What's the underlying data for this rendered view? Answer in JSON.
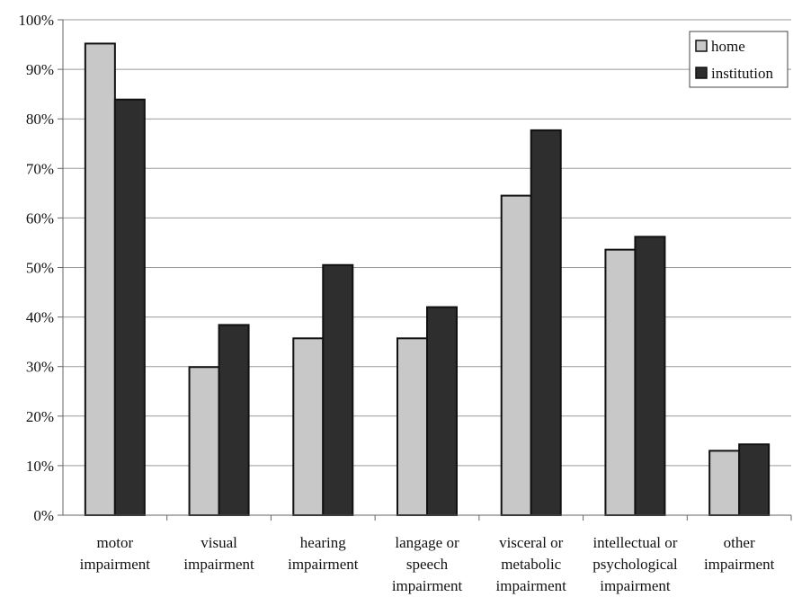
{
  "chart_data": {
    "type": "bar",
    "categories": [
      [
        "motor",
        "impairment"
      ],
      [
        "visual",
        "impairment"
      ],
      [
        "hearing",
        "impairment"
      ],
      [
        "langage or",
        "speech",
        "impairment"
      ],
      [
        "visceral or",
        "metabolic",
        "impairment"
      ],
      [
        "intellectual or",
        "psychological",
        "impairment"
      ],
      [
        "other",
        "impairment"
      ]
    ],
    "series": [
      {
        "name": "home",
        "color": "#c8c8c8",
        "values": [
          95.2,
          29.9,
          35.7,
          35.7,
          64.5,
          53.6,
          13.0
        ]
      },
      {
        "name": "institution",
        "color": "#2e2e2e",
        "values": [
          83.9,
          38.4,
          50.5,
          42.0,
          77.7,
          56.2,
          14.3
        ]
      }
    ],
    "ylim": [
      0,
      100
    ],
    "yticks": [
      "0%",
      "10%",
      "20%",
      "30%",
      "40%",
      "50%",
      "60%",
      "70%",
      "80%",
      "90%",
      "100%"
    ],
    "grid": true,
    "legend_position": "top-right"
  }
}
